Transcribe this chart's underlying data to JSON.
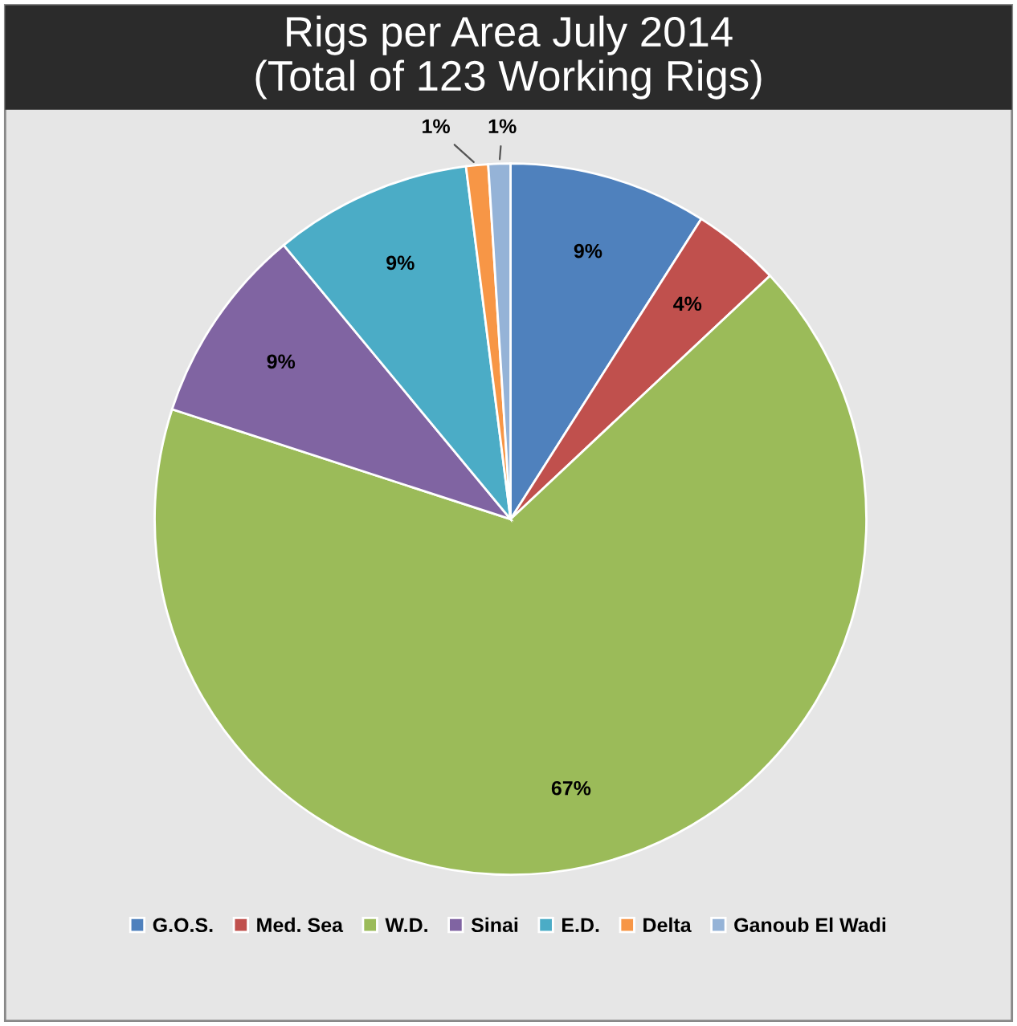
{
  "chart_data": {
    "type": "pie",
    "title": "Rigs per Area July 2014\n(Total of 123 Working Rigs)",
    "categories": [
      "G.O.S.",
      "Med. Sea",
      "W.D.",
      "Sinai",
      "E.D.",
      "Delta",
      "Ganoub El Wadi"
    ],
    "values": [
      9,
      4,
      67,
      9,
      9,
      1,
      1
    ],
    "colors": [
      "#4f81bd",
      "#c0504d",
      "#9bbb59",
      "#8064a2",
      "#4bacc6",
      "#f79646",
      "#95b3d7"
    ],
    "value_labels": [
      "9%",
      "4%",
      "67%",
      "9%",
      "9%",
      "1%",
      "1%"
    ],
    "legend": "bottom"
  }
}
